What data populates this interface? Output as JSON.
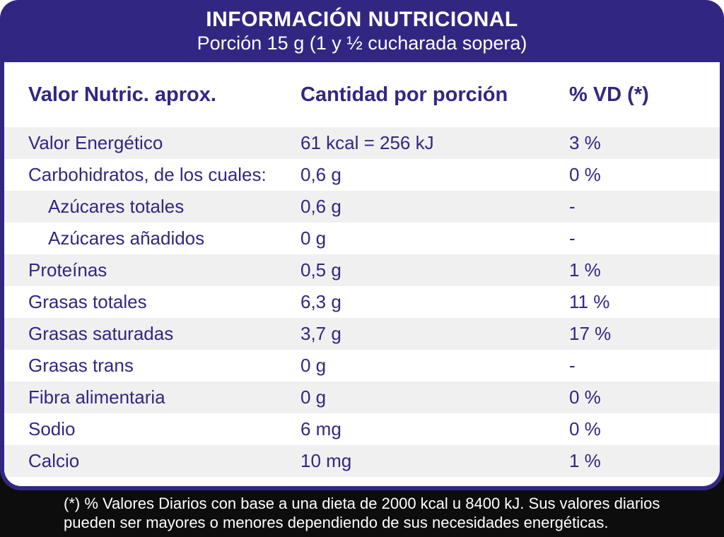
{
  "header": {
    "title": "INFORMACIÓN NUTRICIONAL",
    "subtitle": "Porción 15 g (1 y ½ cucharada sopera)"
  },
  "table": {
    "columns": {
      "nutrient": "Valor Nutric. aprox.",
      "amount": "Cantidad por porción",
      "daily_value": "% VD (*)"
    },
    "rows": [
      {
        "label": "Valor Energético",
        "amount": "61 kcal = 256 kJ",
        "vd": "3 %",
        "indent": false
      },
      {
        "label": "Carbohidratos, de los cuales:",
        "amount": "0,6 g",
        "vd": "0 %",
        "indent": false
      },
      {
        "label": "Azúcares totales",
        "amount": "0,6 g",
        "vd": "-",
        "indent": true
      },
      {
        "label": "Azúcares añadidos",
        "amount": "0 g",
        "vd": "-",
        "indent": true
      },
      {
        "label": "Proteínas",
        "amount": "0,5 g",
        "vd": "1 %",
        "indent": false
      },
      {
        "label": "Grasas totales",
        "amount": "6,3 g",
        "vd": "11 %",
        "indent": false
      },
      {
        "label": "Grasas saturadas",
        "amount": "3,7 g",
        "vd": "17 %",
        "indent": false
      },
      {
        "label": "Grasas trans",
        "amount": "0 g",
        "vd": "-",
        "indent": false
      },
      {
        "label": "Fibra alimentaria",
        "amount": "0 g",
        "vd": "0 %",
        "indent": false
      },
      {
        "label": "Sodio",
        "amount": "6 mg",
        "vd": "0 %",
        "indent": false
      },
      {
        "label": "Calcio",
        "amount": "10 mg",
        "vd": "1 %",
        "indent": false
      }
    ]
  },
  "footer": {
    "note": "(*) % Valores Diarios con base a una dieta de 2000 kcal u 8400 kJ. Sus valores diarios pueden ser mayores o menores dependiendo de sus necesidades energéticas."
  },
  "colors": {
    "navy": "#312783",
    "row_alt": "#f1f0f0",
    "footer_black": "#0d0d0d",
    "text_on_dark": "#ffffff"
  }
}
